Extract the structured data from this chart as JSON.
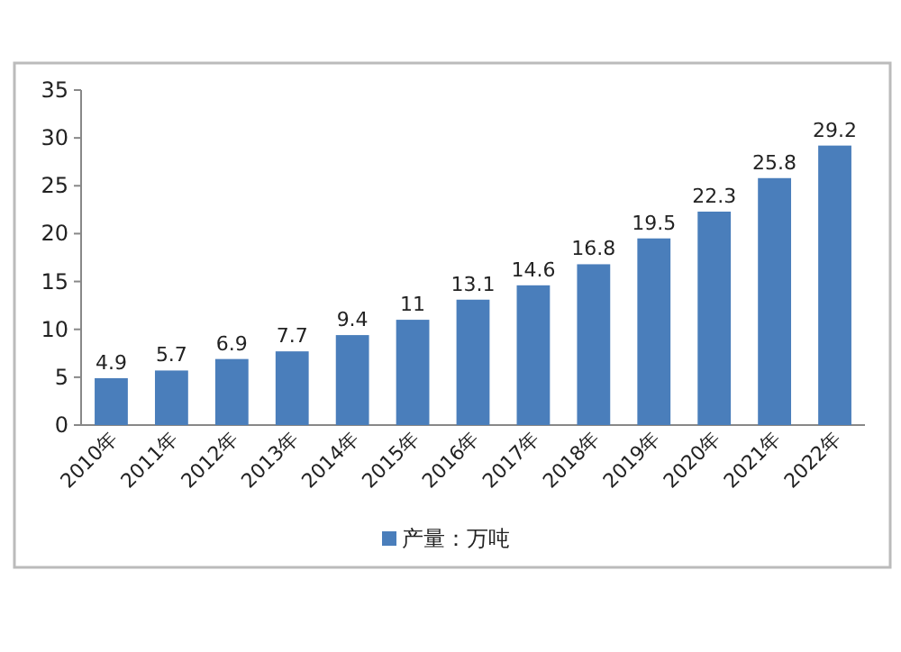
{
  "chart_data": {
    "type": "bar",
    "categories": [
      "2010年",
      "2011年",
      "2012年",
      "2013年",
      "2014年",
      "2015年",
      "2016年",
      "2017年",
      "2018年",
      "2019年",
      "2020年",
      "2021年",
      "2022年"
    ],
    "series": [
      {
        "name": "产量：万吨",
        "color": "#4a7ebb",
        "values": [
          4.9,
          5.7,
          6.9,
          7.7,
          9.4,
          11,
          13.1,
          14.6,
          16.8,
          19.5,
          22.3,
          25.8,
          29.2
        ]
      }
    ],
    "ylim": [
      0,
      35
    ],
    "yticks": [
      0,
      5,
      10,
      15,
      20,
      25,
      30,
      35
    ],
    "data_labels": true,
    "legend": "bottom",
    "grid": false
  }
}
